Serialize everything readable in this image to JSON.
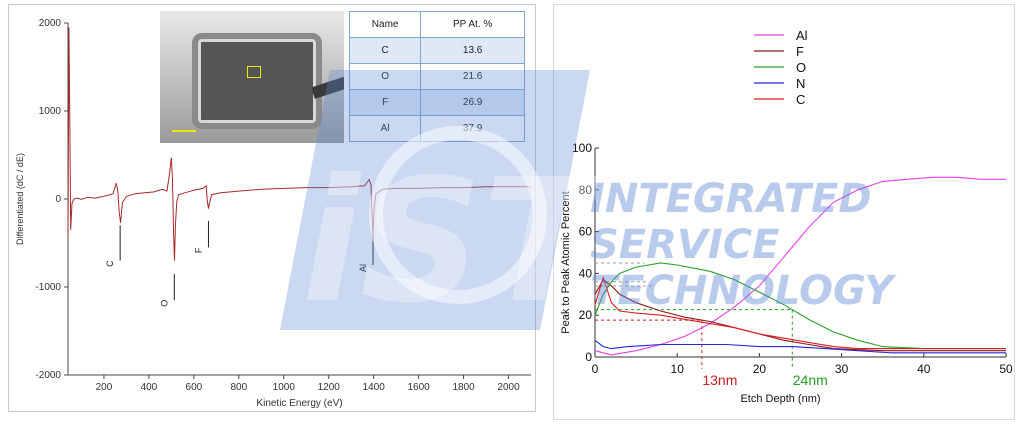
{
  "chart_data": [
    {
      "type": "line",
      "xlabel": "Kinetic Energy (eV)",
      "ylabel": "Differentiated (dC / dE)",
      "xlim": [
        40,
        2100
      ],
      "ylim": [
        -2000,
        2000
      ],
      "xticks": [
        200,
        400,
        600,
        800,
        1000,
        1200,
        1400,
        1600,
        1800,
        2000
      ],
      "yticks": [
        -2000,
        -1000,
        0,
        1000,
        2000
      ],
      "grid": false,
      "series": [
        {
          "color": "#a52a2a",
          "x": [
            40,
            44,
            48,
            52,
            58,
            66,
            80,
            100,
            130,
            160,
            190,
            215,
            240,
            255,
            262,
            268,
            274,
            282,
            300,
            340,
            380,
            420,
            460,
            480,
            490,
            500,
            505,
            510,
            514,
            518,
            524,
            532,
            560,
            600,
            640,
            655,
            660,
            665,
            670,
            680,
            720,
            800,
            900,
            1000,
            1100,
            1200,
            1300,
            1360,
            1380,
            1388,
            1393,
            1397,
            1401,
            1410,
            1440,
            1500,
            1600,
            1700,
            1800,
            1900,
            2000,
            2060,
            2100
          ],
          "y": [
            -450,
            1950,
            900,
            -350,
            -50,
            0,
            10,
            -5,
            20,
            10,
            25,
            40,
            60,
            180,
            80,
            -150,
            -270,
            -40,
            30,
            60,
            70,
            80,
            110,
            90,
            250,
            470,
            200,
            -400,
            -700,
            -300,
            -30,
            50,
            70,
            100,
            120,
            150,
            -20,
            -110,
            -40,
            50,
            70,
            90,
            110,
            120,
            130,
            130,
            140,
            150,
            220,
            160,
            -200,
            -420,
            -150,
            60,
            110,
            120,
            120,
            130,
            130,
            140,
            140,
            140,
            140
          ]
        }
      ],
      "annotations": [
        {
          "text": "C",
          "x": 272
        },
        {
          "text": "O",
          "x": 513
        },
        {
          "text": "F",
          "x": 665
        },
        {
          "text": "Al",
          "x": 1397
        }
      ]
    },
    {
      "type": "table",
      "columns": [
        "Name",
        "PP At. %"
      ],
      "rows": [
        [
          "C",
          "13.6"
        ],
        [
          "O",
          "21.6"
        ],
        [
          "F",
          "26.9"
        ],
        [
          "Al",
          "37.9"
        ]
      ]
    },
    {
      "type": "line",
      "xlabel": "Etch Depth (nm)",
      "ylabel": "Peak to Peak Atomic Percent",
      "xlim": [
        0,
        50
      ],
      "ylim": [
        0,
        100
      ],
      "xticks": [
        0,
        10,
        20,
        30,
        40,
        50
      ],
      "yticks": [
        0,
        20,
        40,
        60,
        80,
        100
      ],
      "grid": false,
      "legend": "top-left",
      "series": [
        {
          "name": "Al",
          "color": "#e83ee8",
          "x": [
            0,
            2,
            5,
            8,
            11,
            14,
            17,
            20,
            23,
            26,
            29,
            32,
            35,
            38,
            41,
            44,
            47,
            50
          ],
          "y": [
            3,
            1,
            3,
            6,
            10,
            16,
            24,
            34,
            48,
            62,
            74,
            80,
            84,
            85,
            86,
            86,
            85,
            85
          ]
        },
        {
          "name": "F",
          "color": "#8b1a1a",
          "x": [
            0,
            1,
            2,
            3,
            5,
            8,
            11,
            14,
            17,
            20,
            23,
            26,
            29,
            32,
            35,
            40,
            45,
            50
          ],
          "y": [
            30,
            37,
            34,
            30,
            26,
            22,
            19,
            17,
            14,
            11,
            8,
            6,
            4,
            3.5,
            3,
            3,
            3,
            3
          ]
        },
        {
          "name": "O",
          "color": "#2aa02a",
          "x": [
            0,
            1,
            2,
            3,
            5,
            8,
            10,
            14,
            17,
            20,
            23,
            26,
            29,
            32,
            35,
            40,
            45,
            50
          ],
          "y": [
            20,
            30,
            36,
            40,
            43,
            45,
            44,
            41,
            37,
            31,
            25,
            18,
            12,
            8,
            5,
            4,
            4,
            4
          ]
        },
        {
          "name": "N",
          "color": "#2626d8",
          "x": [
            0,
            1,
            2,
            4,
            8,
            12,
            16,
            20,
            24,
            28,
            32,
            36,
            40,
            45,
            50
          ],
          "y": [
            8,
            5,
            4,
            5,
            6,
            6,
            6,
            5,
            5,
            4,
            3,
            2,
            2,
            2,
            2
          ]
        },
        {
          "name": "C",
          "color": "#e01b1b",
          "x": [
            0,
            1,
            2,
            3,
            5,
            8,
            11,
            14,
            17,
            20,
            23,
            26,
            29,
            32,
            35,
            40,
            45,
            50
          ],
          "y": [
            25,
            38,
            26,
            22,
            21,
            20,
            18,
            16,
            14,
            11,
            9,
            7,
            5,
            4,
            4,
            4,
            4,
            4
          ]
        }
      ],
      "annotations": [
        {
          "text": "13nm",
          "x": 13,
          "color": "#c41e1e"
        },
        {
          "text": "24nm",
          "x": 24,
          "color": "#22a022"
        }
      ]
    }
  ],
  "watermark": {
    "logo_text": "iST",
    "lines": [
      "INTEGRATED",
      "SERVICE",
      "TECHNOLOGY"
    ],
    "color": "#5b86d6"
  }
}
